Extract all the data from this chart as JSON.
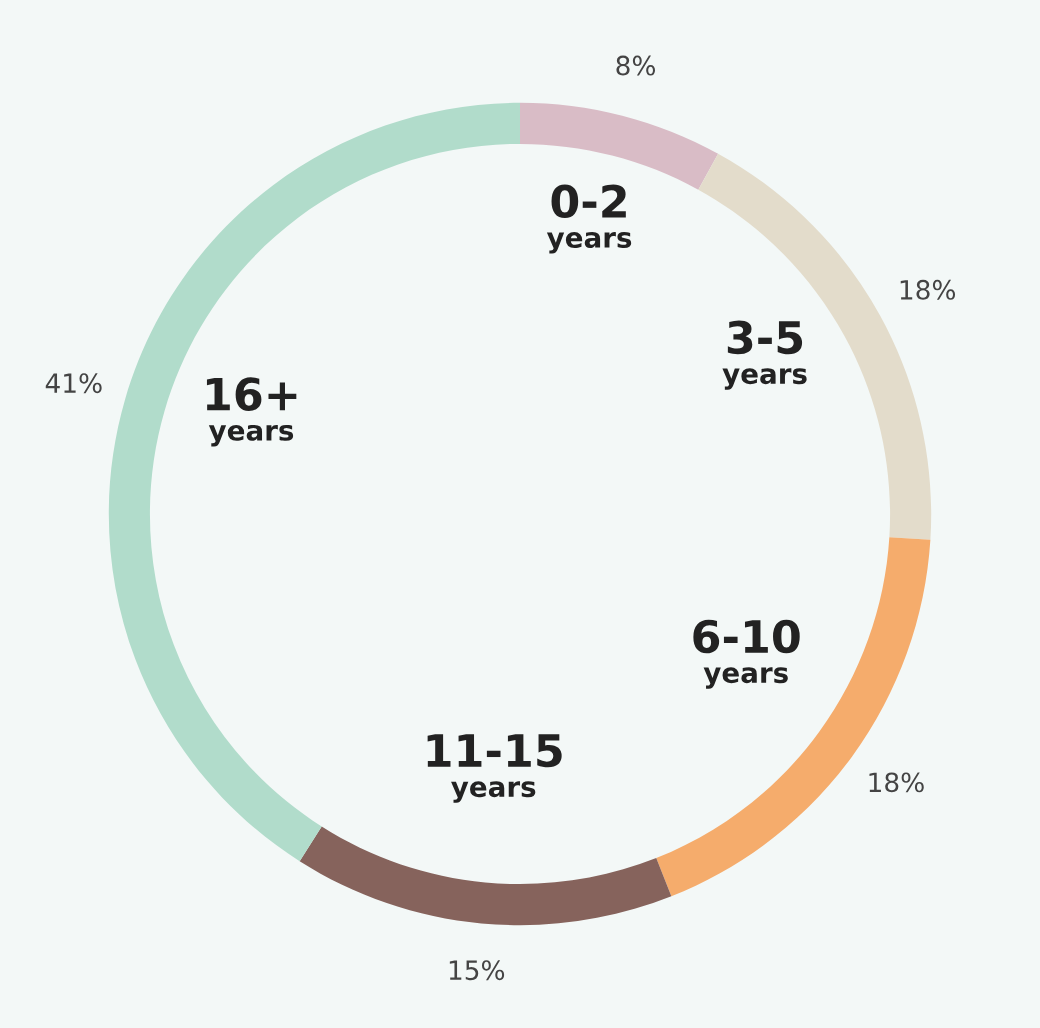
{
  "chart_data": {
    "type": "donut",
    "categories": [
      "0-2 years",
      "3-5 years",
      "6-10 years",
      "11-15 years",
      "16+ years"
    ],
    "values": [
      8,
      18,
      18,
      15,
      41
    ],
    "value_labels": [
      "8%",
      "18%",
      "18%",
      "15%",
      "41%"
    ],
    "colors": [
      "#d9bcc6",
      "#e3dccb",
      "#f5ac6c",
      "#86635c",
      "#b1dccb"
    ],
    "legend": false
  }
}
